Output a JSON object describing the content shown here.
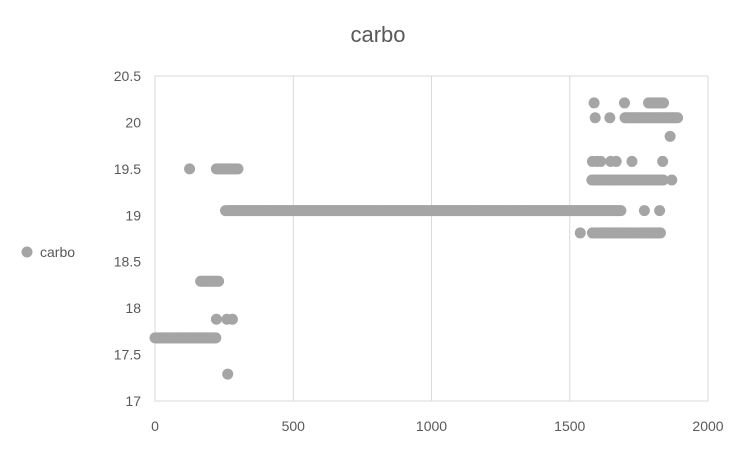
{
  "chart_data": {
    "type": "scatter",
    "title": "carbo",
    "xlabel": "",
    "ylabel": "",
    "xlim": [
      0,
      2000
    ],
    "ylim": [
      17,
      20.5
    ],
    "xticks": [
      0,
      500,
      1000,
      1500,
      2000
    ],
    "xtick_labels": [
      "0",
      "500",
      "1000",
      "1500",
      "2000"
    ],
    "yticks": [
      17,
      17.5,
      18,
      18.5,
      19,
      19.5,
      20,
      20.5
    ],
    "ytick_labels": [
      "17",
      "17.5",
      "18",
      "18.5",
      "19",
      "19.5",
      "20",
      "20.5"
    ],
    "grid": "vertical-major",
    "legend_position": "left",
    "marker_color": "#a5a5a5",
    "series": [
      {
        "name": "carbo",
        "segments": [
          {
            "x_start": 0,
            "x_end": 220,
            "step": 4,
            "y": 17.68
          },
          {
            "x_start": 165,
            "x_end": 230,
            "step": 5,
            "y": 18.29
          },
          {
            "x_start": 255,
            "x_end": 285,
            "step": 5,
            "y": 19.05
          },
          {
            "x_start": 290,
            "x_end": 1685,
            "step": 5,
            "y": 19.05
          },
          {
            "x_start": 222,
            "x_end": 305,
            "step": 6,
            "y": 19.5
          },
          {
            "x_start": 1580,
            "x_end": 1840,
            "step": 6,
            "y": 19.38
          },
          {
            "x_start": 1582,
            "x_end": 1830,
            "step": 6,
            "y": 18.81
          },
          {
            "x_start": 1700,
            "x_end": 1890,
            "step": 5,
            "y": 20.05
          },
          {
            "x_start": 1785,
            "x_end": 1840,
            "step": 6,
            "y": 20.21
          }
        ],
        "points": [
          [
            125,
            19.5
          ],
          [
            222,
            17.88
          ],
          [
            260,
            17.88
          ],
          [
            280,
            17.88
          ],
          [
            263,
            17.29
          ],
          [
            1538,
            18.81
          ],
          [
            1588,
            20.21
          ],
          [
            1592,
            20.05
          ],
          [
            1645,
            20.05
          ],
          [
            1698,
            20.21
          ],
          [
            1863,
            19.85
          ],
          [
            1869,
            19.38
          ],
          [
            1582,
            19.58
          ],
          [
            1598,
            19.58
          ],
          [
            1612,
            19.58
          ],
          [
            1648,
            19.58
          ],
          [
            1668,
            19.58
          ],
          [
            1725,
            19.58
          ],
          [
            1836,
            19.58
          ],
          [
            1770,
            19.05
          ],
          [
            1825,
            19.05
          ]
        ]
      }
    ]
  }
}
